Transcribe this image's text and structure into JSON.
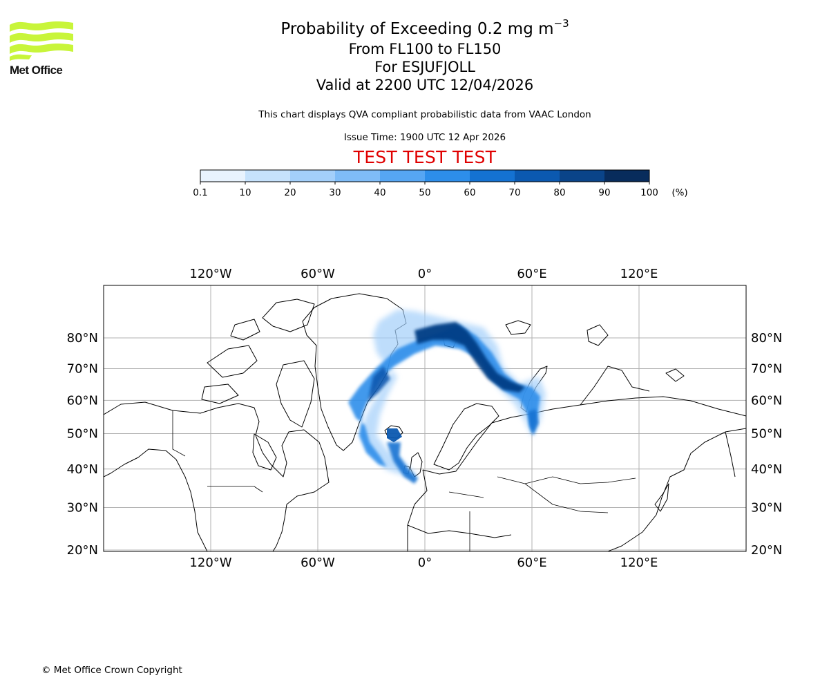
{
  "logo": {
    "text": "Met Office",
    "color": "#c8f53a"
  },
  "header": {
    "title": "Probability of Exceeding 0.2 mg m",
    "title_exponent": "−3",
    "levels": "From FL100 to FL150",
    "volcano": "For ESJUFJOLL",
    "valid": "Valid at 2200 UTC 12/04/2026",
    "disclaimer": "This chart displays QVA compliant probabilistic data from VAAC London",
    "issue_time": "Issue Time: 1900 UTC 12 Apr 2026",
    "test_banner": "TEST TEST TEST",
    "test_color": "#e00000"
  },
  "colorbar": {
    "unit_label": "(%)",
    "tick_labels": [
      "0.1",
      "10",
      "20",
      "30",
      "40",
      "50",
      "60",
      "70",
      "80",
      "90",
      "100"
    ],
    "colors": [
      "#e8f3fe",
      "#c6e2fc",
      "#a3cffa",
      "#7fbcf7",
      "#56a6f3",
      "#2d8eea",
      "#1472d2",
      "#0b59b0",
      "#0a4489",
      "#082c5c"
    ]
  },
  "map": {
    "lon_labels": [
      "120°W",
      "60°W",
      "0°",
      "60°E",
      "120°E"
    ],
    "lon_values": [
      -120,
      -60,
      0,
      60,
      120
    ],
    "lat_labels": [
      "80°N",
      "70°N",
      "60°N",
      "50°N",
      "40°N",
      "30°N",
      "20°N"
    ],
    "lat_values": [
      80,
      70,
      60,
      50,
      40,
      30,
      20
    ],
    "plume_color": "#0a5ac8",
    "core_color": "#063d85"
  },
  "footer": {
    "copyright": "© Met Office Crown Copyright"
  }
}
